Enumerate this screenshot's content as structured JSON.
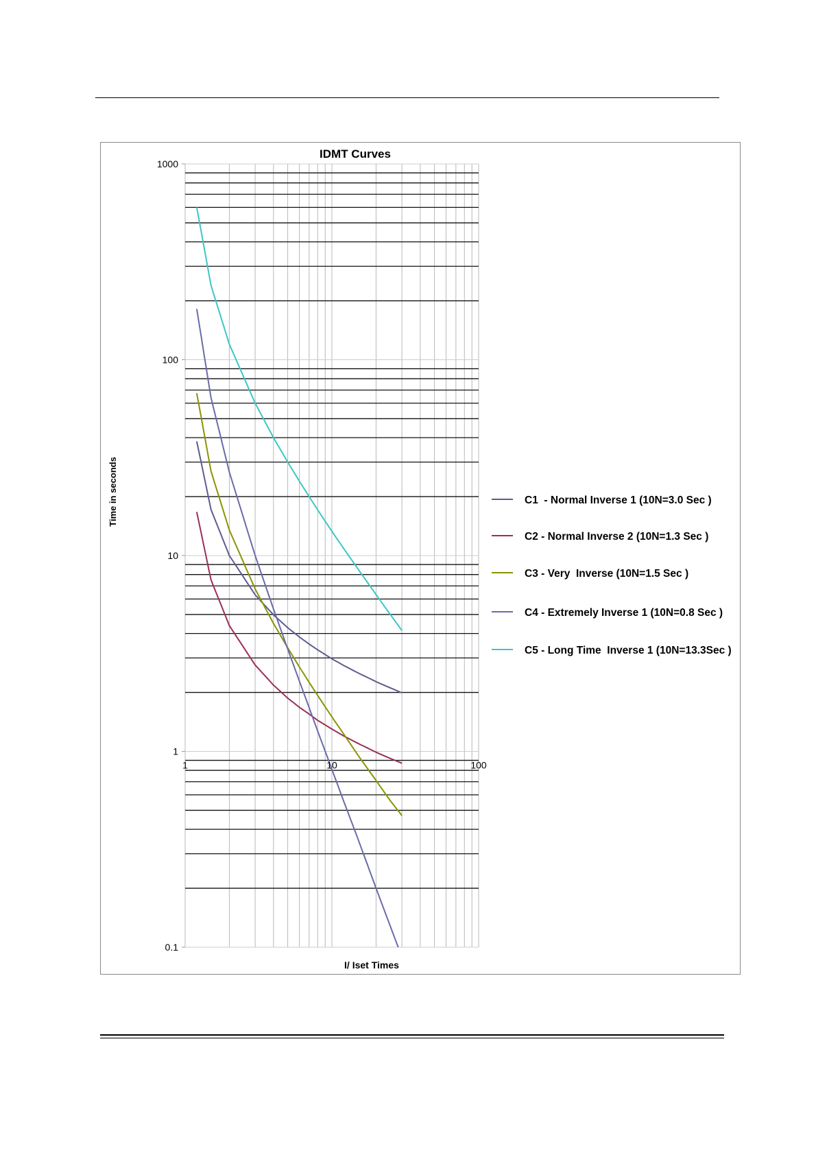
{
  "chart_data": {
    "type": "line",
    "title": "IDMT Curves",
    "xlabel": "I/ Iset Times",
    "ylabel": "Time in seconds",
    "xscale": "log",
    "yscale": "log",
    "xlim": [
      1,
      100
    ],
    "ylim": [
      0.1,
      1000
    ],
    "x_ticks": [
      "1",
      "10",
      "100"
    ],
    "y_ticks": [
      "0.1",
      "1",
      "10",
      "100",
      "1000"
    ],
    "grid": true,
    "legend_position": "right",
    "series": [
      {
        "name": "C1  - Normal Inverse 1 (10N=3.0 Sec )",
        "color": "#5c5c92",
        "x": [
          1.2,
          1.5,
          2,
          3,
          4,
          5,
          6,
          7,
          8,
          10,
          12,
          15,
          20,
          25,
          30
        ],
        "y": [
          38.3,
          17.2,
          10.0,
          6.3,
          4.98,
          4.28,
          3.84,
          3.53,
          3.3,
          2.97,
          2.75,
          2.52,
          2.27,
          2.11,
          1.99
        ]
      },
      {
        "name": "C2 - Normal Inverse 2 (10N=1.3 Sec )",
        "color": "#9b2d5c",
        "x": [
          1.2,
          1.5,
          2,
          3,
          4,
          5,
          6,
          7,
          8,
          10,
          12,
          15,
          20,
          25,
          30
        ],
        "y": [
          16.7,
          7.52,
          4.39,
          2.76,
          2.18,
          1.87,
          1.68,
          1.55,
          1.44,
          1.3,
          1.2,
          1.1,
          0.99,
          0.92,
          0.87
        ]
      },
      {
        "name": "C3 - Very  Inverse (10N=1.5 Sec )",
        "color": "#8a9400",
        "x": [
          1.2,
          1.5,
          2,
          3,
          4,
          5,
          6,
          7,
          8,
          10,
          12,
          15,
          20,
          25,
          30
        ],
        "y": [
          67.5,
          27.0,
          13.5,
          6.75,
          4.5,
          3.38,
          2.7,
          2.25,
          1.93,
          1.5,
          1.23,
          0.96,
          0.71,
          0.56,
          0.47
        ]
      },
      {
        "name": "C4 - Extremely Inverse 1 (10N=0.8 Sec )",
        "color": "#6a6aaa",
        "x": [
          1.2,
          1.5,
          2,
          3,
          4,
          5,
          6,
          7,
          8,
          10,
          12,
          15,
          20,
          25,
          28.3
        ],
        "y": [
          181.8,
          64.0,
          26.7,
          10.0,
          5.33,
          3.33,
          2.29,
          1.67,
          1.27,
          0.81,
          0.56,
          0.36,
          0.2,
          0.128,
          0.1
        ]
      },
      {
        "name": "C5 - Long Time  Inverse 1 (10N=13.3Sec )",
        "color": "#3cc6c6",
        "x": [
          1.2,
          1.5,
          2,
          3,
          4,
          5,
          6,
          7,
          8,
          10,
          12,
          15,
          20,
          25,
          30
        ],
        "y": [
          600,
          240,
          120,
          60,
          40,
          30,
          24,
          20,
          17.1,
          13.3,
          10.9,
          8.57,
          6.32,
          5.0,
          4.14
        ]
      }
    ]
  }
}
